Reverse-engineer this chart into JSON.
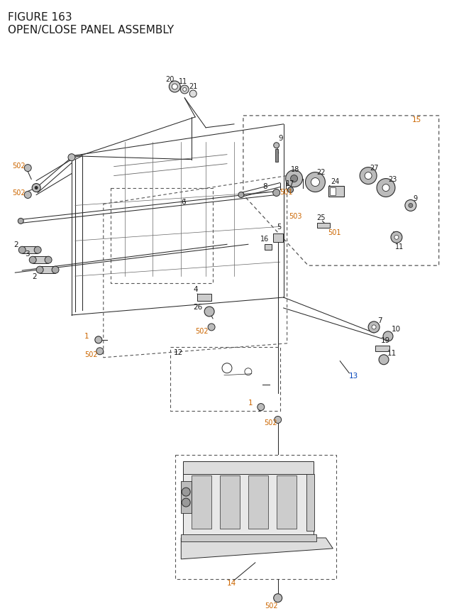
{
  "title_line1": "FIGURE 163",
  "title_line2": "OPEN/CLOSE PANEL ASSEMBLY",
  "bg_color": "#ffffff",
  "line_color": "#2a2a2a",
  "orange": "#cc6600",
  "black": "#1a1a1a",
  "blue": "#0044bb",
  "gray": "#666666",
  "dash_color": "#555555"
}
